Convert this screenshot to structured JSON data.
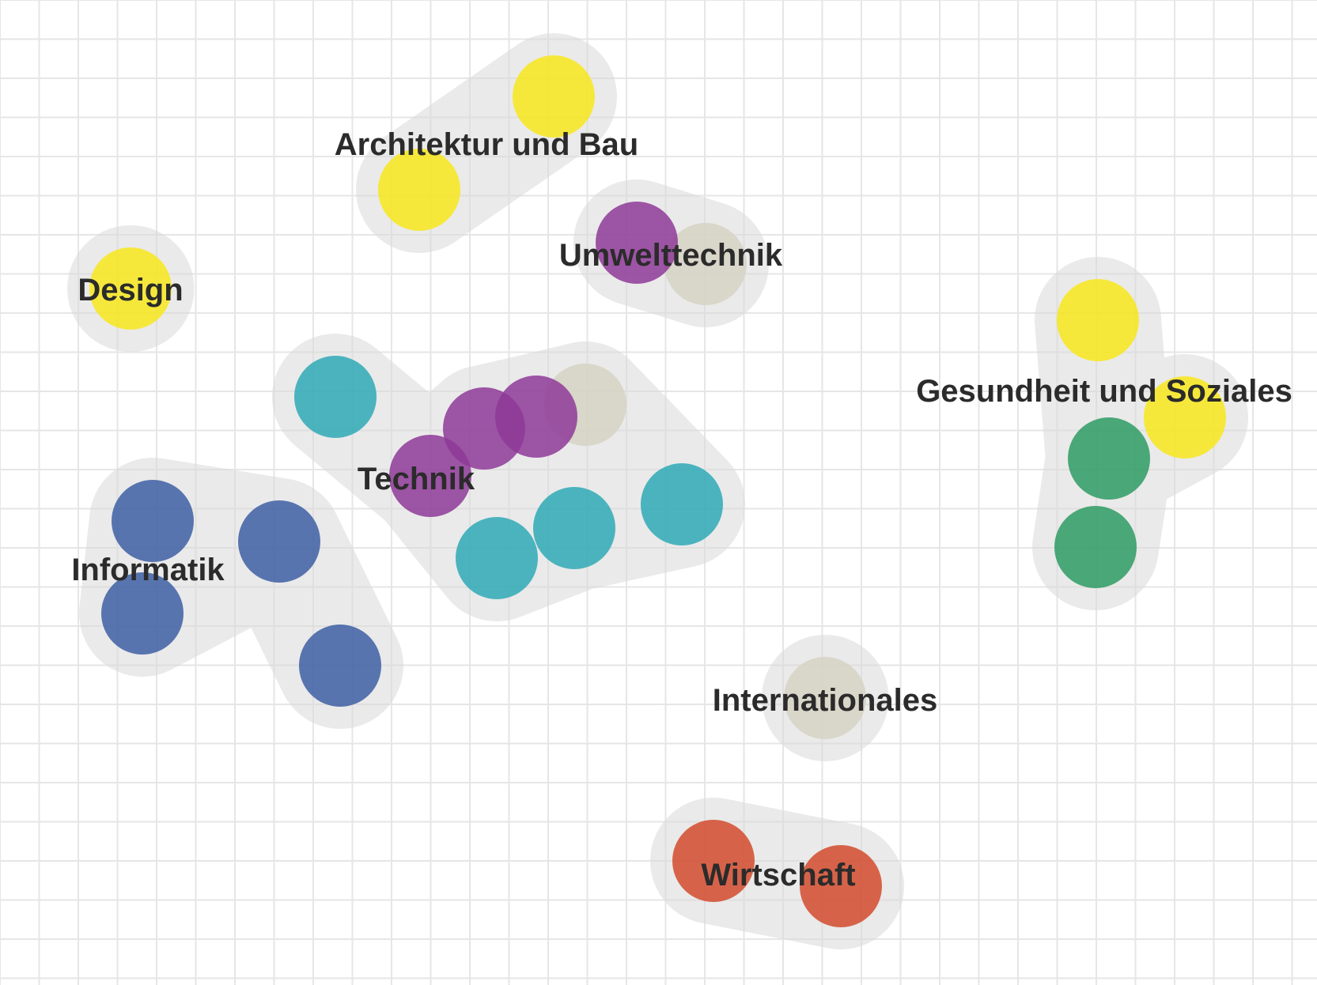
{
  "colors": {
    "background": "#ffffff",
    "grid": "#e6e6e6",
    "hull": "#d9d9d9",
    "label": "#2b2b2b",
    "yellow": "#f8e71c",
    "purple": "#8e3a98",
    "beige": "#d6d2c4",
    "teal": "#2fa9b6",
    "blue": "#3e5fa5",
    "green": "#2e9b63",
    "red": "#d24b2d"
  },
  "clusters": [
    {
      "id": "architektur",
      "label": "Architektur und Bau",
      "nodes": [
        "yellow",
        "yellow"
      ]
    },
    {
      "id": "umwelttechnik",
      "label": "Umwelttechnik",
      "nodes": [
        "purple",
        "beige"
      ]
    },
    {
      "id": "design",
      "label": "Design",
      "nodes": [
        "yellow"
      ]
    },
    {
      "id": "technik",
      "label": "Technik",
      "nodes": [
        "teal",
        "purple",
        "purple",
        "purple",
        "beige",
        "teal",
        "teal",
        "teal"
      ]
    },
    {
      "id": "informatik",
      "label": "Informatik",
      "nodes": [
        "blue",
        "blue",
        "blue",
        "blue"
      ]
    },
    {
      "id": "gesundheit",
      "label": "Gesundheit und Soziales",
      "nodes": [
        "yellow",
        "yellow",
        "green",
        "green"
      ]
    },
    {
      "id": "internationales",
      "label": "Internationales",
      "nodes": [
        "beige"
      ]
    },
    {
      "id": "wirtschaft",
      "label": "Wirtschaft",
      "nodes": [
        "red",
        "red"
      ]
    }
  ]
}
